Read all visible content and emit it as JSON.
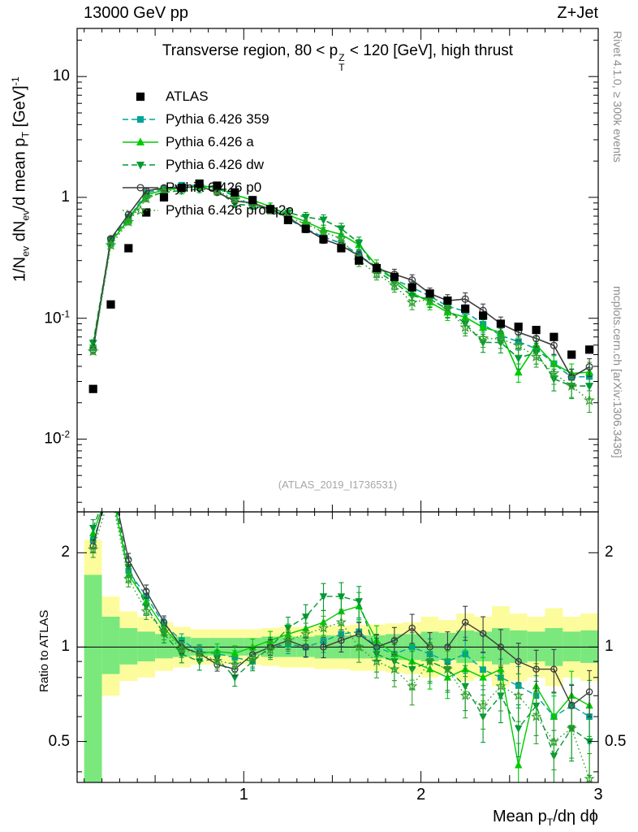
{
  "header": {
    "left": "13000 GeV pp",
    "right": "Z+Jet"
  },
  "title": {
    "p1": "Transverse region, 80 < p",
    "sup": "Z",
    "sub": "T",
    "p2": " < 120 [GeV], high thrust"
  },
  "y_axis": {
    "label": {
      "p1": "1/N",
      "s1": "ev",
      "p2": " dN",
      "s2": "ev",
      "p3": "/d mean p",
      "s3": "T",
      "p4": " [GeV]",
      "sup": "-1"
    },
    "ticks": [
      {
        "v": 10,
        "base": "10",
        "sup": ""
      },
      {
        "v": 1,
        "base": "1",
        "sup": ""
      },
      {
        "v": 0.1,
        "base": "10",
        "sup": "-1"
      },
      {
        "v": 0.01,
        "base": "10",
        "sup": "-2"
      }
    ]
  },
  "ratio_axis": {
    "label": "Ratio to ATLAS",
    "ticks": [
      {
        "v": 0.5,
        "t": "0.5"
      },
      {
        "v": 1,
        "t": "1"
      },
      {
        "v": 2,
        "t": "2"
      }
    ]
  },
  "x_axis": {
    "label": {
      "p1": "Mean p",
      "sub": "T",
      "p2": "/dη dϕ"
    },
    "ticks": [
      {
        "v": 1,
        "t": "1"
      },
      {
        "v": 2,
        "t": "2"
      },
      {
        "v": 3,
        "t": "3"
      }
    ]
  },
  "notes": {
    "rivet": "Rivet 4.1.0, ≥ 300k events",
    "mcplots": "mcplots.cern.ch [arXiv:1306.3436]",
    "watermark": "(ATLAS_2019_I1736531)"
  },
  "chart_data": {
    "type": "line",
    "title": "Transverse region, 80 < pT(Z) < 120 [GeV], high thrust",
    "xlabel": "Mean pT/dη dϕ",
    "ylabel": "1/Nev dNev/d mean pT [GeV]^-1",
    "ratio_ylabel": "Ratio to ATLAS",
    "x_scale": "linear",
    "y_scale": "log",
    "xlim": [
      0.06,
      3.0
    ],
    "ylim_main": [
      0.0025,
      25
    ],
    "ylim_ratio": [
      0.37,
      2.7
    ],
    "bin_width": 0.1,
    "x": [
      0.15,
      0.25,
      0.35,
      0.45,
      0.55,
      0.65,
      0.75,
      0.85,
      0.95,
      1.05,
      1.15,
      1.25,
      1.35,
      1.45,
      1.55,
      1.65,
      1.75,
      1.85,
      1.95,
      2.05,
      2.15,
      2.25,
      2.35,
      2.45,
      2.55,
      2.65,
      2.75,
      2.85,
      2.95
    ],
    "reference": {
      "name": "ATLAS",
      "color": "#000000",
      "marker": "square",
      "values": [
        0.026,
        0.13,
        0.38,
        0.75,
        1.0,
        1.2,
        1.3,
        1.25,
        1.1,
        0.95,
        0.8,
        0.65,
        0.55,
        0.45,
        0.38,
        0.3,
        0.26,
        0.22,
        0.18,
        0.16,
        0.14,
        0.12,
        0.105,
        0.09,
        0.085,
        0.08,
        0.07,
        0.05,
        0.055
      ]
    },
    "series": [
      {
        "name": "Pythia 6.426 359",
        "color": "#00a39a",
        "line": "dashed",
        "marker": "square",
        "filled": true,
        "err_scale": 1.0,
        "values": [
          0.057,
          0.416,
          0.665,
          1.09,
          1.18,
          1.26,
          1.26,
          1.19,
          1.02,
          0.855,
          0.8,
          0.663,
          0.55,
          0.47,
          0.418,
          0.336,
          0.26,
          0.209,
          0.18,
          0.152,
          0.126,
          0.114,
          0.089,
          0.072,
          0.064,
          0.056,
          0.042,
          0.0325,
          0.033
        ]
      },
      {
        "name": "Pythia 6.426 a",
        "color": "#00cc00",
        "line": "solid",
        "marker": "triangle-up",
        "filled": true,
        "err_scale": 1.15,
        "values": [
          0.06,
          0.429,
          0.646,
          1.05,
          1.15,
          1.2,
          1.24,
          1.21,
          1.05,
          0.95,
          0.84,
          0.715,
          0.63,
          0.54,
          0.494,
          0.405,
          0.273,
          0.209,
          0.162,
          0.136,
          0.112,
          0.102,
          0.084,
          0.0765,
          0.0357,
          0.06,
          0.042,
          0.035,
          0.0358
        ]
      },
      {
        "name": "Pythia 6.426 dw",
        "color": "#009933",
        "line": "dashed",
        "marker": "triangle-down",
        "filled": true,
        "err_scale": 1.25,
        "values": [
          0.0624,
          0.442,
          0.684,
          1.01,
          1.1,
          1.14,
          1.17,
          1.15,
          0.88,
          0.855,
          0.8,
          0.748,
          0.688,
          0.653,
          0.551,
          0.42,
          0.247,
          0.198,
          0.153,
          0.144,
          0.119,
          0.09,
          0.063,
          0.063,
          0.0468,
          0.052,
          0.0315,
          0.0275,
          0.0275
        ]
      },
      {
        "name": "Pythia 6.426 p0",
        "color": "#3c3c3c",
        "line": "solid",
        "marker": "circle",
        "filled": false,
        "err_scale": 0.95,
        "values": [
          0.0546,
          0.455,
          0.722,
          1.13,
          1.2,
          1.2,
          1.24,
          1.1,
          0.935,
          0.9,
          0.8,
          0.6825,
          0.55,
          0.45,
          0.399,
          0.33,
          0.26,
          0.231,
          0.207,
          0.16,
          0.14,
          0.144,
          0.116,
          0.09,
          0.0765,
          0.068,
          0.0595,
          0.0325,
          0.0396
        ]
      },
      {
        "name": "Pythia 6.426 pro-q2o",
        "color": "#33a02c",
        "line": "dotted",
        "marker": "star",
        "filled": false,
        "err_scale": 1.15,
        "values": [
          0.0533,
          0.403,
          0.627,
          0.975,
          1.12,
          1.18,
          1.24,
          1.13,
          0.968,
          0.874,
          0.784,
          0.6825,
          0.605,
          0.5175,
          0.456,
          0.3,
          0.234,
          0.187,
          0.135,
          0.144,
          0.119,
          0.084,
          0.0683,
          0.0675,
          0.0595,
          0.048,
          0.035,
          0.0275,
          0.0209
        ]
      }
    ],
    "bands": {
      "yellow": {
        "color": "#fcfc9c",
        "lo": [
          0.3,
          0.7,
          0.78,
          0.8,
          0.84,
          0.86,
          0.88,
          0.88,
          0.88,
          0.88,
          0.87,
          0.86,
          0.86,
          0.85,
          0.85,
          0.84,
          0.84,
          0.83,
          0.82,
          0.8,
          0.82,
          0.78,
          0.8,
          0.75,
          0.78,
          0.8,
          0.75,
          0.8,
          0.78
        ],
        "hi": [
          2.2,
          1.45,
          1.3,
          1.25,
          1.2,
          1.16,
          1.14,
          1.14,
          1.14,
          1.14,
          1.15,
          1.16,
          1.16,
          1.17,
          1.17,
          1.18,
          1.18,
          1.19,
          1.2,
          1.25,
          1.22,
          1.28,
          1.25,
          1.35,
          1.28,
          1.25,
          1.33,
          1.25,
          1.28
        ]
      },
      "green": {
        "color": "#7be87e",
        "lo": [
          0.3,
          0.82,
          0.88,
          0.9,
          0.92,
          0.93,
          0.94,
          0.94,
          0.94,
          0.94,
          0.93,
          0.93,
          0.93,
          0.92,
          0.92,
          0.92,
          0.92,
          0.91,
          0.91,
          0.9,
          0.91,
          0.89,
          0.9,
          0.88,
          0.89,
          0.9,
          0.87,
          0.9,
          0.89
        ],
        "hi": [
          1.7,
          1.25,
          1.15,
          1.12,
          1.1,
          1.08,
          1.07,
          1.07,
          1.07,
          1.07,
          1.08,
          1.08,
          1.08,
          1.09,
          1.09,
          1.09,
          1.09,
          1.1,
          1.1,
          1.12,
          1.11,
          1.13,
          1.12,
          1.15,
          1.13,
          1.12,
          1.15,
          1.12,
          1.13
        ]
      }
    }
  }
}
